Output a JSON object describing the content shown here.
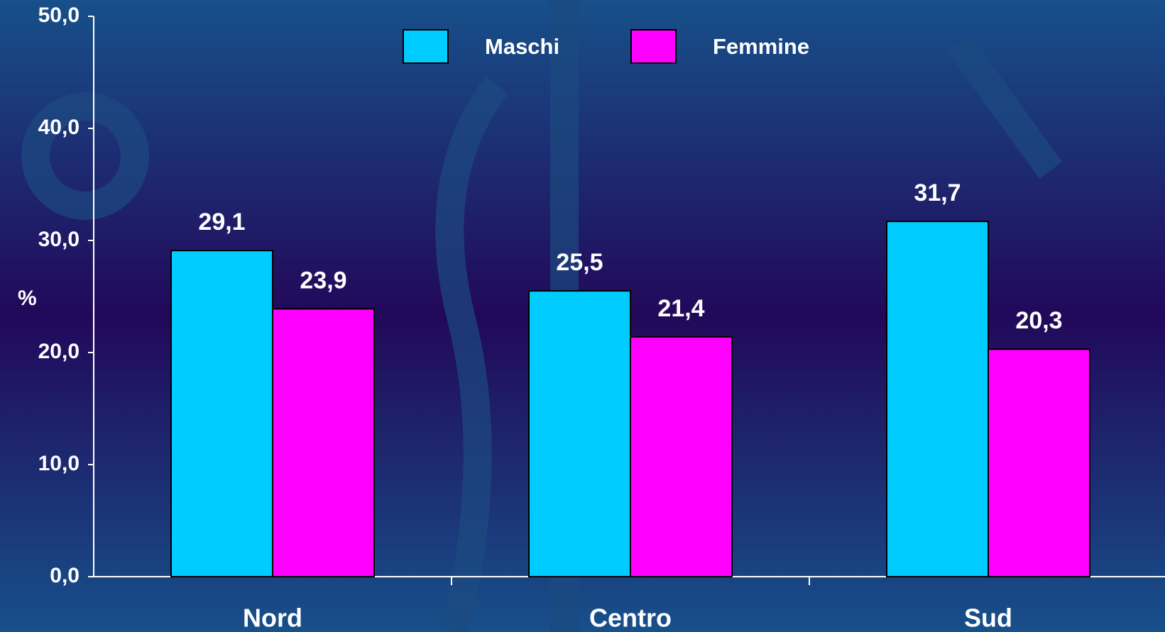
{
  "chart_data": {
    "type": "bar",
    "y_label": "%",
    "categories": [
      "Nord",
      "Centro",
      "Sud"
    ],
    "series": [
      {
        "name": "Maschi",
        "color": "#00ccff",
        "values": [
          29.1,
          25.5,
          31.7
        ],
        "value_labels": [
          "29,1",
          "25,5",
          "31,7"
        ]
      },
      {
        "name": "Femmine",
        "color": "#ff00ff",
        "values": [
          23.9,
          21.4,
          20.3
        ],
        "value_labels": [
          "23,9",
          "21,4",
          "20,3"
        ]
      }
    ],
    "ylim": [
      0,
      50
    ],
    "yticks": [
      {
        "value": 0,
        "label": "0,0"
      },
      {
        "value": 10,
        "label": "10,0"
      },
      {
        "value": 20,
        "label": "20,0"
      },
      {
        "value": 30,
        "label": "30,0"
      },
      {
        "value": 40,
        "label": "40,0"
      },
      {
        "value": 50,
        "label": "50,0"
      }
    ],
    "grid": false
  }
}
